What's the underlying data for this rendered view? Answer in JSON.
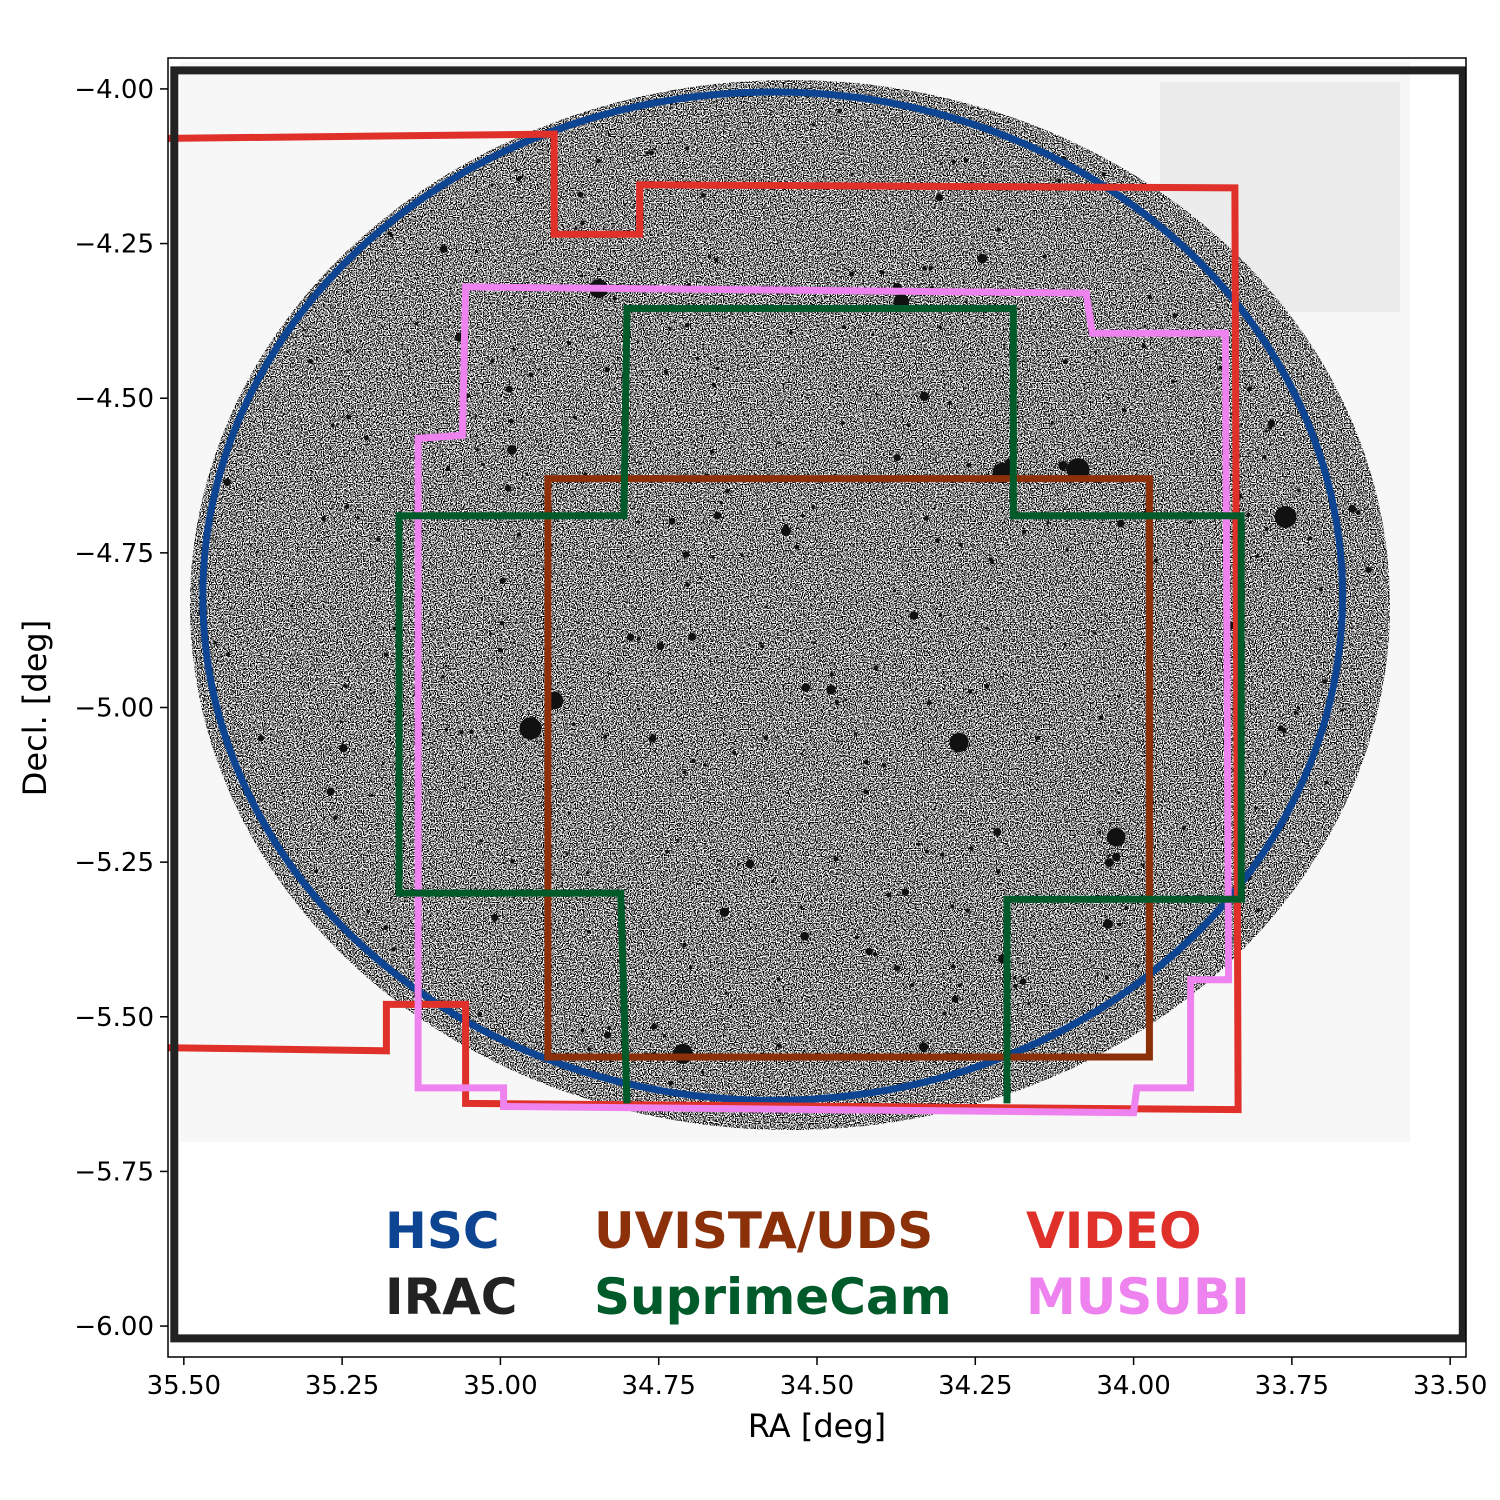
{
  "chart_data": {
    "type": "map",
    "xlabel": "RA [deg]",
    "ylabel": "Decl. [deg]",
    "xlim": [
      35.525,
      33.475
    ],
    "ylim": [
      -6.05,
      -3.95
    ],
    "x_ticks": [
      {
        "value": 35.5,
        "label": "35.50"
      },
      {
        "value": 35.25,
        "label": "35.25"
      },
      {
        "value": 35.0,
        "label": "35.00"
      },
      {
        "value": 34.75,
        "label": "34.75"
      },
      {
        "value": 34.5,
        "label": "34.50"
      },
      {
        "value": 34.25,
        "label": "34.25"
      },
      {
        "value": 34.0,
        "label": "34.00"
      },
      {
        "value": 33.75,
        "label": "33.75"
      },
      {
        "value": 33.5,
        "label": "33.50"
      }
    ],
    "y_ticks": [
      {
        "value": -4.0,
        "label": "−4.00"
      },
      {
        "value": -4.25,
        "label": "−4.25"
      },
      {
        "value": -4.5,
        "label": "−4.50"
      },
      {
        "value": -4.75,
        "label": "−4.75"
      },
      {
        "value": -5.0,
        "label": "−5.00"
      },
      {
        "value": -5.25,
        "label": "−5.25"
      },
      {
        "value": -5.5,
        "label": "−5.50"
      },
      {
        "value": -5.75,
        "label": "−5.75"
      },
      {
        "value": -6.0,
        "label": "−6.00"
      }
    ],
    "background": "grayscale star-field mosaic",
    "series": [
      {
        "name": "HSC",
        "color": "#0d4593",
        "shape": "ellipse",
        "center": [
          34.57,
          -4.82
        ],
        "radius_ra": 0.9,
        "radius_dec": 0.815
      },
      {
        "name": "IRAC",
        "color": "#222222",
        "shape": "polygon",
        "points": [
          [
            35.515,
            -3.97
          ],
          [
            33.48,
            -3.97
          ],
          [
            33.48,
            -6.02
          ],
          [
            35.515,
            -6.02
          ]
        ]
      },
      {
        "name": "UVISTA/UDS",
        "color": "#8b3008",
        "shape": "polygon",
        "points": [
          [
            34.925,
            -4.63
          ],
          [
            33.975,
            -4.63
          ],
          [
            33.975,
            -5.565
          ],
          [
            34.925,
            -5.565
          ]
        ]
      },
      {
        "name": "SuprimeCam",
        "color": "#005a2a",
        "shape": "polygon",
        "points": [
          [
            34.8,
            -4.355
          ],
          [
            34.19,
            -4.355
          ],
          [
            34.19,
            -4.69
          ],
          [
            33.83,
            -4.69
          ],
          [
            33.83,
            -5.31
          ],
          [
            34.2,
            -5.31
          ],
          [
            34.2,
            -5.64
          ],
          [
            34.195,
            -5.3
          ],
          [
            34.2,
            -5.31
          ],
          [
            34.2,
            -5.64
          ]
        ],
        "segments": [
          [
            [
              34.8,
              -5.64
            ],
            [
              34.81,
              -5.3
            ],
            [
              35.16,
              -5.3
            ],
            [
              35.16,
              -4.69
            ],
            [
              34.805,
              -4.69
            ],
            [
              34.8,
              -4.355
            ],
            [
              34.19,
              -4.355
            ],
            [
              34.19,
              -4.69
            ],
            [
              33.83,
              -4.69
            ],
            [
              33.83,
              -5.31
            ],
            [
              34.2,
              -5.31
            ],
            [
              34.2,
              -5.64
            ]
          ]
        ]
      },
      {
        "name": "VIDEO",
        "color": "#e0302a",
        "shape": "polyline",
        "points": [
          [
            35.525,
            -4.08
          ],
          [
            34.915,
            -4.073
          ],
          [
            34.915,
            -4.235
          ],
          [
            34.78,
            -4.235
          ],
          [
            34.78,
            -4.155
          ],
          [
            33.84,
            -4.16
          ],
          [
            33.835,
            -5.65
          ],
          [
            35.055,
            -5.64
          ],
          [
            35.055,
            -5.48
          ],
          [
            35.18,
            -5.48
          ],
          [
            35.18,
            -5.555
          ],
          [
            35.525,
            -5.55
          ]
        ]
      },
      {
        "name": "MUSUBI",
        "color": "#ee82ee",
        "shape": "polygon",
        "points": [
          [
            35.055,
            -4.32
          ],
          [
            34.075,
            -4.33
          ],
          [
            34.065,
            -4.395
          ],
          [
            33.855,
            -4.395
          ],
          [
            33.85,
            -5.44
          ],
          [
            33.91,
            -5.44
          ],
          [
            33.91,
            -5.615
          ],
          [
            33.995,
            -5.615
          ],
          [
            34.0,
            -5.655
          ],
          [
            34.995,
            -5.645
          ],
          [
            34.995,
            -5.615
          ],
          [
            35.13,
            -5.615
          ],
          [
            35.13,
            -4.565
          ],
          [
            35.06,
            -4.56
          ]
        ]
      }
    ],
    "legend": {
      "placement": "bottom-inside",
      "columns": 3,
      "entries": [
        "HSC",
        "IRAC",
        "UVISTA/UDS",
        "SuprimeCam",
        "VIDEO",
        "MUSUBI"
      ]
    }
  }
}
